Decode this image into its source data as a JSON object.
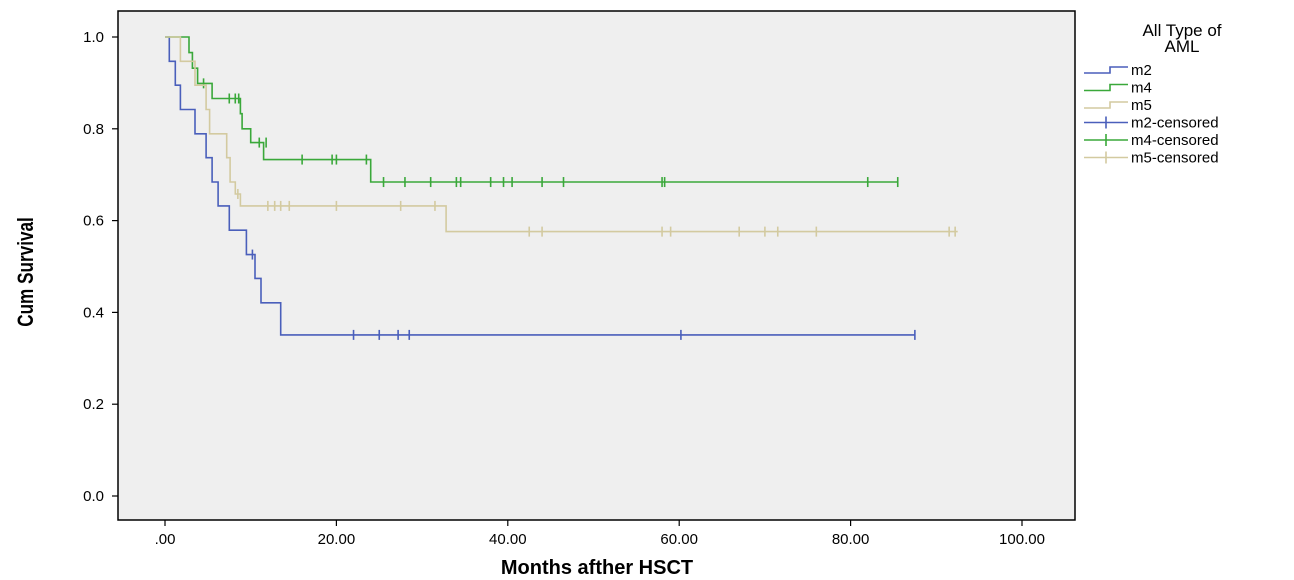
{
  "chart_data": {
    "type": "line",
    "subtype": "kaplan-meier step survival curves",
    "xlabel": "Months afther HSCT",
    "ylabel": "Cum Survival",
    "xlim": [
      0,
      100
    ],
    "ylim": [
      0,
      1
    ],
    "x_ticks": [
      0,
      20,
      40,
      60,
      80,
      100
    ],
    "x_tick_labels": [
      ".00",
      "20.00",
      "40.00",
      "60.00",
      "80.00",
      "100.00"
    ],
    "y_ticks": [
      0,
      0.2,
      0.4,
      0.6,
      0.8,
      1.0
    ],
    "y_tick_labels": [
      "0.0",
      "0.2",
      "0.4",
      "0.6",
      "0.8",
      "1.0"
    ],
    "grid": false,
    "plot_background": "#efefef",
    "legend": {
      "title": [
        "All Type of",
        "AML"
      ],
      "position": "right",
      "entries": [
        {
          "label": "m2",
          "series": "m2",
          "kind": "step"
        },
        {
          "label": "m4",
          "series": "m4",
          "kind": "step"
        },
        {
          "label": "m5",
          "series": "m5",
          "kind": "step"
        },
        {
          "label": "m2-censored",
          "series": "m2",
          "kind": "censor"
        },
        {
          "label": "m4-censored",
          "series": "m4",
          "kind": "censor"
        },
        {
          "label": "m5-censored",
          "series": "m5",
          "kind": "censor"
        }
      ]
    },
    "series": [
      {
        "name": "m2",
        "color": "#4a5fbb",
        "steps": [
          [
            0,
            1.0
          ],
          [
            0.5,
            0.947
          ],
          [
            1.2,
            0.895
          ],
          [
            1.8,
            0.842
          ],
          [
            3.5,
            0.789
          ],
          [
            4.8,
            0.737
          ],
          [
            5.5,
            0.684
          ],
          [
            6.2,
            0.632
          ],
          [
            7.5,
            0.579
          ],
          [
            9.5,
            0.526
          ],
          [
            10.5,
            0.474
          ],
          [
            11.2,
            0.421
          ],
          [
            13.5,
            0.351
          ],
          [
            87.5,
            0.351
          ]
        ],
        "censored": [
          [
            10.2,
            0.526
          ],
          [
            22,
            0.351
          ],
          [
            25,
            0.351
          ],
          [
            27.2,
            0.351
          ],
          [
            28.5,
            0.351
          ],
          [
            60.2,
            0.351
          ],
          [
            87.5,
            0.351
          ]
        ]
      },
      {
        "name": "m4",
        "color": "#3aa83a",
        "steps": [
          [
            0,
            1.0
          ],
          [
            2.8,
            0.966
          ],
          [
            3.2,
            0.932
          ],
          [
            3.8,
            0.899
          ],
          [
            5.5,
            0.866
          ],
          [
            8.8,
            0.833
          ],
          [
            9.0,
            0.8
          ],
          [
            10.0,
            0.77
          ],
          [
            11.5,
            0.733
          ],
          [
            24.0,
            0.684
          ],
          [
            85.5,
            0.684
          ]
        ],
        "censored": [
          [
            4.5,
            0.899
          ],
          [
            7.5,
            0.866
          ],
          [
            8.2,
            0.866
          ],
          [
            8.6,
            0.866
          ],
          [
            11.0,
            0.77
          ],
          [
            11.8,
            0.77
          ],
          [
            16,
            0.733
          ],
          [
            19.5,
            0.733
          ],
          [
            20,
            0.733
          ],
          [
            23.5,
            0.733
          ],
          [
            25.5,
            0.684
          ],
          [
            28,
            0.684
          ],
          [
            31,
            0.684
          ],
          [
            34,
            0.684
          ],
          [
            34.5,
            0.684
          ],
          [
            38,
            0.684
          ],
          [
            39.5,
            0.684
          ],
          [
            40.5,
            0.684
          ],
          [
            44,
            0.684
          ],
          [
            46.5,
            0.684
          ],
          [
            58,
            0.684
          ],
          [
            58.3,
            0.684
          ],
          [
            82,
            0.684
          ],
          [
            85.5,
            0.684
          ]
        ]
      },
      {
        "name": "m5",
        "color": "#d3caa0",
        "steps": [
          [
            0,
            1.0
          ],
          [
            1.8,
            0.947
          ],
          [
            3.5,
            0.895
          ],
          [
            4.8,
            0.842
          ],
          [
            5.2,
            0.789
          ],
          [
            7.2,
            0.737
          ],
          [
            7.6,
            0.684
          ],
          [
            8.2,
            0.658
          ],
          [
            8.8,
            0.632
          ],
          [
            32.8,
            0.576
          ],
          [
            92.5,
            0.576
          ]
        ],
        "censored": [
          [
            8.5,
            0.658
          ],
          [
            12,
            0.632
          ],
          [
            12.8,
            0.632
          ],
          [
            13.5,
            0.632
          ],
          [
            14.5,
            0.632
          ],
          [
            20,
            0.632
          ],
          [
            27.5,
            0.632
          ],
          [
            31.5,
            0.632
          ],
          [
            42.5,
            0.576
          ],
          [
            44,
            0.576
          ],
          [
            58,
            0.576
          ],
          [
            59,
            0.576
          ],
          [
            67,
            0.576
          ],
          [
            70,
            0.576
          ],
          [
            71.5,
            0.576
          ],
          [
            76,
            0.576
          ],
          [
            91.5,
            0.576
          ],
          [
            92.2,
            0.576
          ]
        ]
      }
    ]
  }
}
